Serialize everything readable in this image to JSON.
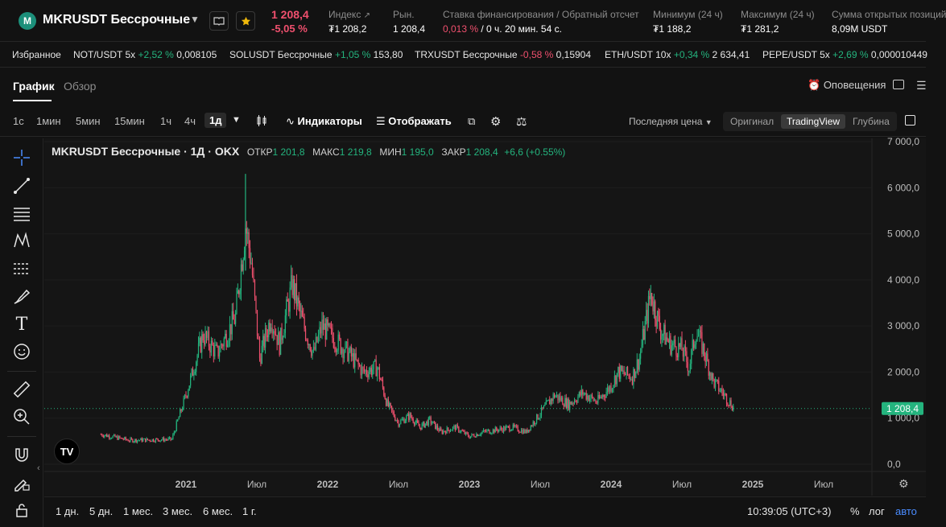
{
  "header": {
    "logo_letter": "M",
    "pair": "MKRUSDT Бессрочные",
    "last_price": "1 208,4",
    "change_pct": "-5,05 %",
    "stats": [
      {
        "label": "Индекс",
        "value": "₮1 208,2"
      },
      {
        "label": "Рын.",
        "value": "1 208,4"
      },
      {
        "label": "Ставка финансирования / Обратный отсчет",
        "value_rate": "0,013 %",
        "value_countdown": " / 0 ч. 20 мин. 54 с."
      },
      {
        "label": "Минимум (24 ч)",
        "value": "₮1 188,2"
      },
      {
        "label": "Максимум (24 ч)",
        "value": "₮1 281,2"
      },
      {
        "label": "Сумма открытых позиций",
        "value": "8,09M USDT"
      }
    ]
  },
  "favorites": {
    "label": "Избранное",
    "items": [
      {
        "name": "NOT/USDT 5x",
        "change": "+2,52 %",
        "price": "0,008105",
        "dir": "up"
      },
      {
        "name": "SOLUSDT Бессрочные",
        "change": "+1,05 %",
        "price": "153,80",
        "dir": "up"
      },
      {
        "name": "TRXUSDT Бессрочные",
        "change": "-0,58 %",
        "price": "0,15904",
        "dir": "down"
      },
      {
        "name": "ETH/USDT 10x",
        "change": "+0,34 %",
        "price": "2 634,41",
        "dir": "up"
      },
      {
        "name": "PEPE/USDT 5x",
        "change": "+2,69 %",
        "price": "0,000010449",
        "dir": "up"
      }
    ]
  },
  "tabs": {
    "chart": "График",
    "overview": "Обзор",
    "alerts": "Оповещения"
  },
  "toolbar": {
    "timeframes": [
      "1с",
      "1мин",
      "5мин",
      "15мин",
      "1ч",
      "4ч",
      "1д"
    ],
    "active_timeframe": "1д",
    "indicators": "Индикаторы",
    "display": "Отображать",
    "price_type": "Последняя цена",
    "views": [
      "Оригинал",
      "TradingView",
      "Глубина"
    ],
    "active_view": "TradingView"
  },
  "legend": {
    "title": "MKRUSDT Бессрочные · 1Д · OKX",
    "open_label": "ОТКР",
    "open": "1 201,8",
    "high_label": "МАКС",
    "high": "1 219,8",
    "low_label": "МИН",
    "low": "1 195,0",
    "close_label": "ЗАКР",
    "close": "1 208,4",
    "change": "+6,6 (+0.55%)"
  },
  "chart_data": {
    "type": "line",
    "ylim": [
      0,
      7000
    ],
    "yticks": [
      "7 000,0",
      "6 000,0",
      "5 000,0",
      "4 000,0",
      "3 000,0",
      "2 000,0",
      "1 000,0",
      "0,0"
    ],
    "xticks": [
      "2021",
      "Июл",
      "2022",
      "Июл",
      "2023",
      "Июл",
      "2024",
      "Июл",
      "2025",
      "Июл"
    ],
    "last_price_tag": "1 208,4",
    "series": [
      {
        "t": [
          2020.4,
          2020.6,
          2020.9,
          2021.0,
          2021.12,
          2021.22,
          2021.35,
          2021.42,
          2021.46,
          2021.52,
          2021.6,
          2021.66,
          2021.75,
          2021.82,
          2021.9,
          2021.96,
          2022.05,
          2022.15,
          2022.25,
          2022.35,
          2022.42,
          2022.5,
          2022.58,
          2022.65,
          2022.72,
          2022.8,
          2022.9,
          2023.0,
          2023.1,
          2023.2,
          2023.3,
          2023.4,
          2023.5,
          2023.6,
          2023.7,
          2023.8,
          2023.9,
          2024.0,
          2024.05,
          2024.15,
          2024.2,
          2024.28,
          2024.35,
          2024.42,
          2024.5,
          2024.55,
          2024.6,
          2024.65,
          2024.72,
          2024.8,
          2024.87
        ],
        "close": [
          650,
          520,
          540,
          1500,
          2800,
          2400,
          3200,
          5200,
          4400,
          2300,
          3200,
          2600,
          3900,
          3100,
          2400,
          3000,
          2700,
          2400,
          2000,
          2100,
          1300,
          900,
          1050,
          800,
          950,
          700,
          800,
          600,
          700,
          750,
          800,
          700,
          1100,
          1500,
          1300,
          1550,
          1350,
          1700,
          2000,
          1900,
          2300,
          3700,
          2900,
          2600,
          2500,
          2100,
          2900,
          2500,
          1800,
          1500,
          1208
        ]
      }
    ]
  }
}
